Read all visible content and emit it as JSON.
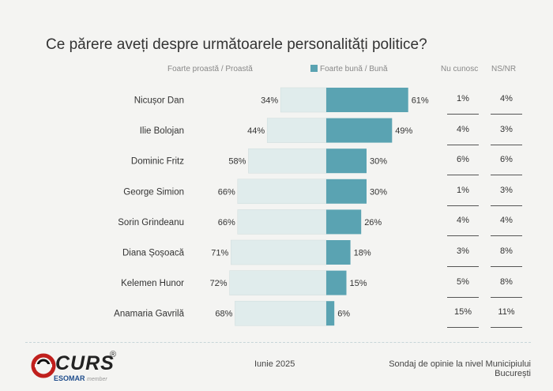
{
  "title": "Ce părere aveți despre următoarele personalități politice?",
  "legend": {
    "negative_label": "Foarte proastă / Proastă",
    "positive_label": "Foarte bună / Bună"
  },
  "columns": {
    "unknown_label": "Nu cunosc",
    "nsnr_label": "NS/NR"
  },
  "colors": {
    "negative": "#e0ecec",
    "positive": "#5aa3b2",
    "legend_negative": "#e0ecec"
  },
  "chart_data": {
    "type": "bar",
    "orientation": "horizontal-diverging",
    "title": "Ce părere aveți despre următoarele personalități politice?",
    "categories": [
      "Nicușor Dan",
      "Ilie Bolojan",
      "Dominic Fritz",
      "George Simion",
      "Sorin Grindeanu",
      "Diana Șoșoacă",
      "Kelemen Hunor",
      "Anamaria Gavrilă"
    ],
    "series": [
      {
        "name": "Foarte proastă / Proastă",
        "values": [
          34,
          44,
          58,
          66,
          66,
          71,
          72,
          68
        ]
      },
      {
        "name": "Foarte bună / Bună",
        "values": [
          61,
          49,
          30,
          30,
          26,
          18,
          15,
          6
        ]
      },
      {
        "name": "Nu cunosc",
        "values": [
          1,
          4,
          6,
          1,
          4,
          3,
          5,
          15
        ]
      },
      {
        "name": "NS/NR",
        "values": [
          4,
          3,
          6,
          3,
          4,
          8,
          8,
          11
        ]
      }
    ],
    "value_labels": {
      "negative": [
        "34%",
        "44%",
        "58%",
        "66%",
        "66%",
        "71%",
        "72%",
        "68%"
      ],
      "positive": [
        "61%",
        "49%",
        "30%",
        "30%",
        "26%",
        "18%",
        "15%",
        "6%"
      ],
      "unknown": [
        "1%",
        "4%",
        "6%",
        "1%",
        "4%",
        "3%",
        "5%",
        "15%"
      ],
      "nsnr": [
        "4%",
        "3%",
        "6%",
        "3%",
        "4%",
        "8%",
        "8%",
        "11%"
      ]
    },
    "legend_position": "top",
    "unit": "%"
  },
  "footer": {
    "brand": "CURS",
    "brand_sub": "ESOMAR",
    "brand_sub_small": "member",
    "date": "Iunie 2025",
    "source_line1": "Sondaj de opinie la nivel Municipiului",
    "source_line2": "București"
  }
}
